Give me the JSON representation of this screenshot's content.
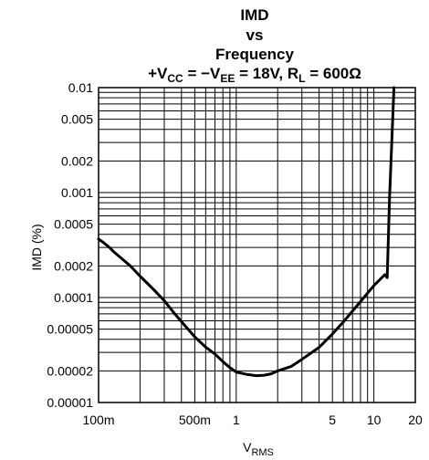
{
  "chart_data": {
    "type": "line",
    "title_lines": [
      "IMD",
      "vs",
      "Frequency"
    ],
    "condition": {
      "v1": "+V",
      "s1": "CC",
      "mid": " = −V",
      "s2": "EE",
      "mid2": " = 18V, R",
      "s3": "L",
      "end": " = 600Ω"
    },
    "ylabel": "IMD (%)",
    "xlabel": {
      "main": "V",
      "sub": "RMS"
    },
    "xscale": "log",
    "yscale": "log",
    "xlim": [
      0.1,
      20
    ],
    "ylim": [
      1e-05,
      0.01
    ],
    "grid": true,
    "x_ticks": [
      {
        "value": 0.1,
        "label": "100m"
      },
      {
        "value": 0.5,
        "label": "500m"
      },
      {
        "value": 1,
        "label": "1"
      },
      {
        "value": 5,
        "label": "5"
      },
      {
        "value": 10,
        "label": "10"
      },
      {
        "value": 20,
        "label": "20"
      }
    ],
    "y_ticks": [
      {
        "value": 0.01,
        "label": "0.01"
      },
      {
        "value": 0.005,
        "label": "0.005"
      },
      {
        "value": 0.002,
        "label": "0.002"
      },
      {
        "value": 0.001,
        "label": "0.001"
      },
      {
        "value": 0.0005,
        "label": "0.0005"
      },
      {
        "value": 0.0002,
        "label": "0.0002"
      },
      {
        "value": 0.0001,
        "label": "0.0001"
      },
      {
        "value": 5e-05,
        "label": "0.00005"
      },
      {
        "value": 2e-05,
        "label": "0.00002"
      },
      {
        "value": 1e-05,
        "label": "0.00001"
      }
    ],
    "series": [
      {
        "color": "#000000",
        "x": [
          0.1,
          0.11,
          0.12,
          0.13,
          0.15,
          0.17,
          0.2,
          0.25,
          0.3,
          0.35,
          0.4,
          0.5,
          0.6,
          0.7,
          0.8,
          0.9,
          1.0,
          1.2,
          1.4,
          1.6,
          1.8,
          2.0,
          2.5,
          3.0,
          4.0,
          5.0,
          6.0,
          8.0,
          10.0,
          12.0,
          12.5,
          13.0,
          14.0
        ],
        "y": [
          0.00036,
          0.00033,
          0.0003,
          0.00027,
          0.00023,
          0.0002,
          0.00016,
          0.00012,
          9.35e-05,
          7.25e-05,
          5.9e-05,
          4.22e-05,
          3.37e-05,
          2.9e-05,
          2.45e-05,
          2.15e-05,
          1.95e-05,
          1.85e-05,
          1.8e-05,
          1.82e-05,
          1.88e-05,
          2e-05,
          2.2e-05,
          2.58e-05,
          3.35e-05,
          4.5e-05,
          5.85e-05,
          9.15e-05,
          0.00013,
          0.000165,
          0.000155,
          0.0009,
          0.01
        ]
      }
    ]
  }
}
